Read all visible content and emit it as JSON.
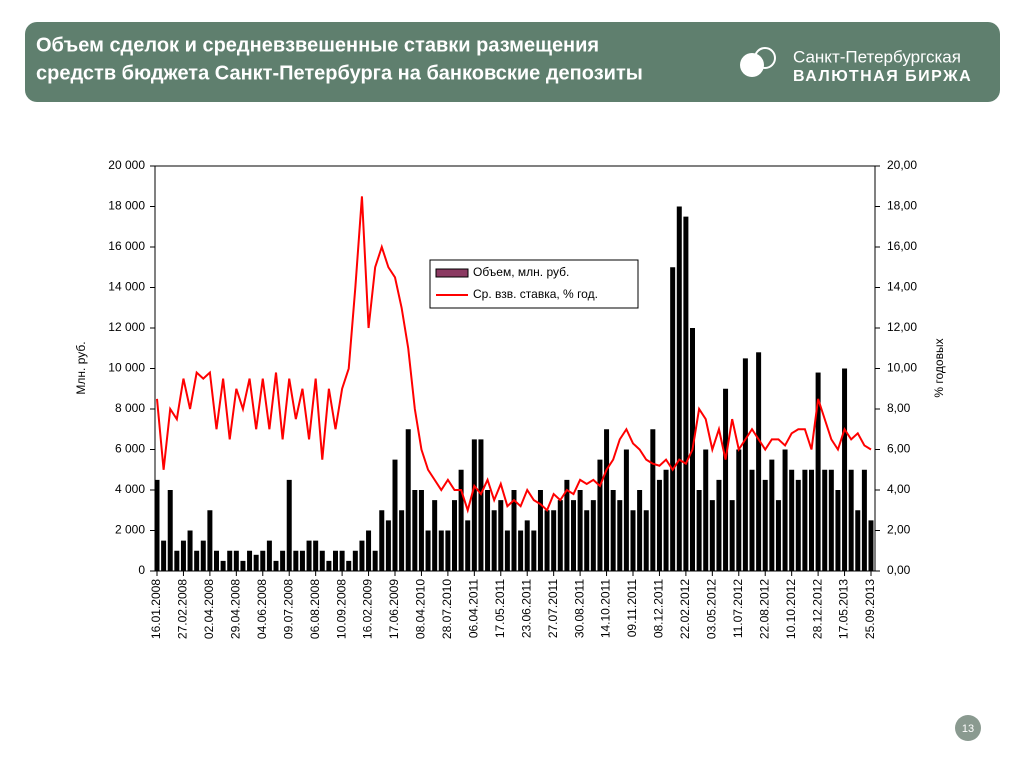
{
  "header": {
    "title_lines": [
      "Объем сделок и средневзвешенные ставки размещения",
      "средств бюджета Санкт-Петербурга на банковские депозиты"
    ],
    "logo_lines": [
      "Санкт-Петербургская",
      "ВАЛЮТНАЯ БИРЖА"
    ]
  },
  "page_number": "13",
  "chart_data": {
    "type": "bar_line",
    "ylabel": "Млн. руб.",
    "y2label": "% годовых",
    "ylim": [
      0,
      20000
    ],
    "yticks": [
      0,
      {
        "value": 2000,
        "label": "2 000"
      },
      {
        "value": 4000,
        "label": "4 000"
      },
      {
        "value": 6000,
        "label": "6 000"
      },
      {
        "value": 8000,
        "label": "8 000"
      },
      {
        "value": 10000,
        "label": "10 000"
      },
      {
        "value": 12000,
        "label": "12 000"
      },
      {
        "value": 14000,
        "label": "14 000"
      },
      {
        "value": 16000,
        "label": "16 000"
      },
      {
        "value": 18000,
        "label": "18 000"
      },
      {
        "value": 20000,
        "label": "20 000"
      }
    ],
    "y2lim": [
      0,
      20
    ],
    "y2ticks": [
      {
        "value": 0,
        "label": "0,00"
      },
      {
        "value": 2,
        "label": "2,00"
      },
      {
        "value": 4,
        "label": "4,00"
      },
      {
        "value": 6,
        "label": "6,00"
      },
      {
        "value": 8,
        "label": "8,00"
      },
      {
        "value": 10,
        "label": "10,00"
      },
      {
        "value": 12,
        "label": "12,00"
      },
      {
        "value": 14,
        "label": "14,00"
      },
      {
        "value": 16,
        "label": "16,00"
      },
      {
        "value": 18,
        "label": "18,00"
      },
      {
        "value": 20,
        "label": "20,00"
      }
    ],
    "categories": [
      "16.01.2008",
      null,
      null,
      null,
      "27.02.2008",
      null,
      null,
      null,
      "02.04.2008",
      null,
      null,
      null,
      "29.04.2008",
      null,
      null,
      null,
      "04.06.2008",
      null,
      null,
      null,
      "09.07.2008",
      null,
      null,
      null,
      "06.08.2008",
      null,
      null,
      null,
      "10.09.2008",
      null,
      null,
      null,
      "16.02.2009",
      null,
      null,
      null,
      "17.06.2009",
      null,
      null,
      null,
      "08.04.2010",
      null,
      null,
      null,
      "28.07.2010",
      null,
      null,
      null,
      "06.04.2011",
      null,
      null,
      null,
      "17.05.2011",
      null,
      null,
      null,
      "23.06.2011",
      null,
      null,
      null,
      "27.07.2011",
      null,
      null,
      null,
      "30.08.2011",
      null,
      null,
      null,
      "14.10.2011",
      null,
      null,
      null,
      "09.11.2011",
      null,
      null,
      null,
      "08.12.2011",
      null,
      null,
      null,
      "22.02.2012",
      null,
      null,
      null,
      "03.05.2012",
      null,
      null,
      null,
      "11.07.2012",
      null,
      null,
      null,
      "22.08.2012",
      null,
      null,
      null,
      "10.10.2012",
      null,
      null,
      null,
      "28.12.2012",
      null,
      null,
      null,
      "17.05.2013",
      null,
      null,
      null,
      "25.09.2013"
    ],
    "series": [
      {
        "name": "Объем, млн. руб.",
        "kind": "bar",
        "color": "#000000",
        "legend_color": "#8b3a62",
        "values": [
          4500,
          1500,
          4000,
          1000,
          1500,
          2000,
          1000,
          1500,
          3000,
          1000,
          500,
          1000,
          1000,
          500,
          1000,
          800,
          1000,
          1500,
          500,
          1000,
          4500,
          1000,
          1000,
          1500,
          1500,
          1000,
          500,
          1000,
          1000,
          500,
          1000,
          1500,
          2000,
          1000,
          3000,
          2500,
          5500,
          3000,
          7000,
          4000,
          4000,
          2000,
          3500,
          2000,
          2000,
          3500,
          5000,
          2500,
          6500,
          6500,
          4000,
          3000,
          3500,
          2000,
          4000,
          2000,
          2500,
          2000,
          4000,
          3000,
          3000,
          3500,
          4500,
          3500,
          4000,
          3000,
          3500,
          5500,
          7000,
          4000,
          3500,
          6000,
          3000,
          4000,
          3000,
          7000,
          4500,
          5000,
          15000,
          18000,
          17500,
          12000,
          4000,
          6000,
          3500,
          4500,
          9000,
          3500,
          6000,
          10500,
          5000,
          10800,
          4500,
          5500,
          3500,
          6000,
          5000,
          4500,
          5000,
          5000,
          9800,
          5000,
          5000,
          4000,
          10000,
          5000,
          3000,
          5000,
          2500
        ]
      },
      {
        "name": "Ср. взв. ставка, % год.",
        "kind": "line",
        "axis": "y2",
        "color": "#ff0000",
        "values": [
          8.5,
          5,
          8,
          7.5,
          9.5,
          8,
          9.8,
          9.5,
          9.8,
          7,
          9.5,
          6.5,
          9,
          8,
          9.5,
          7,
          9.5,
          7,
          9.8,
          6.5,
          9.5,
          7.5,
          9,
          6.5,
          9.5,
          5.5,
          9,
          7,
          9,
          10,
          14,
          18.5,
          12,
          15,
          16,
          15,
          14.5,
          13,
          11,
          8,
          6,
          5,
          4.5,
          4,
          4.5,
          4,
          4,
          3,
          4.2,
          3.8,
          4.5,
          3.5,
          4.3,
          3.2,
          3.5,
          3.2,
          4,
          3.5,
          3.3,
          3,
          3.8,
          3.5,
          4,
          3.8,
          4.5,
          4.3,
          4.5,
          4.2,
          5,
          5.5,
          6.5,
          7,
          6.3,
          6,
          5.5,
          5.3,
          5.2,
          5.5,
          5,
          5.5,
          5.3,
          6,
          8,
          7.5,
          6,
          7,
          5.5,
          7.5,
          6,
          6.5,
          7,
          6.5,
          6,
          6.5,
          6.5,
          6.2,
          6.8,
          7,
          7,
          6,
          8.5,
          7.5,
          6.5,
          6,
          7,
          6.5,
          6.8,
          6.2,
          6
        ]
      }
    ]
  }
}
